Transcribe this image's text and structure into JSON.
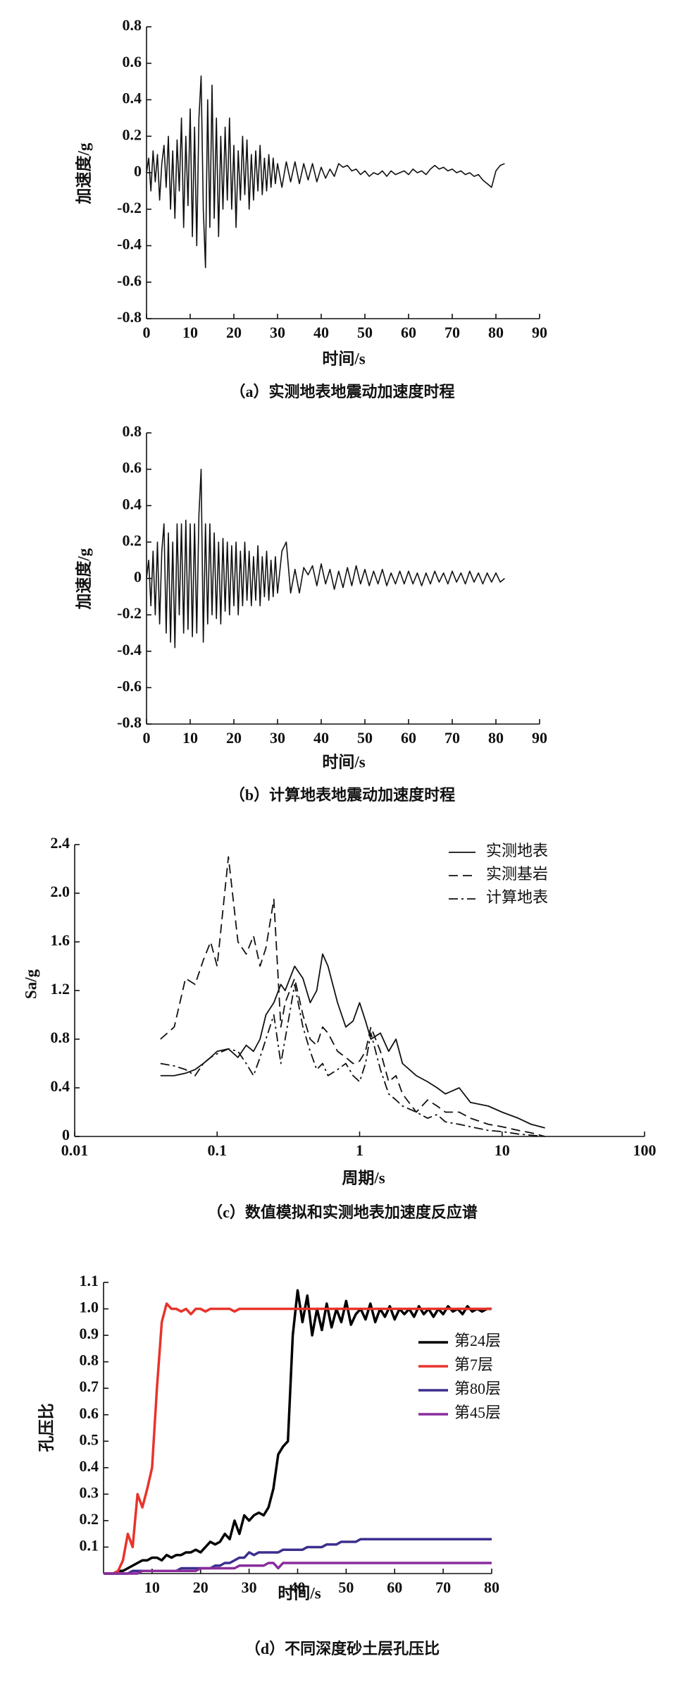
{
  "chart_data": [
    {
      "type": "line",
      "caption": "（a）实测地表地震动加速度时程",
      "xlabel": "时间/s",
      "ylabel": "加速度/g",
      "x": [
        0,
        0.5,
        1,
        1.5,
        2,
        2.5,
        3,
        3.5,
        4,
        4.5,
        5,
        5.5,
        6,
        6.5,
        7,
        7.5,
        8,
        8.5,
        9,
        9.5,
        10,
        10.5,
        11,
        11.5,
        12,
        12.5,
        13,
        13.5,
        14,
        14.5,
        15,
        15.5,
        16,
        16.5,
        17,
        17.5,
        18,
        18.5,
        19,
        19.5,
        20,
        20.5,
        21,
        21.5,
        22,
        22.5,
        23,
        23.5,
        24,
        24.5,
        25,
        25.5,
        26,
        26.5,
        27,
        27.5,
        28,
        28.5,
        29,
        29.5,
        30,
        31,
        32,
        33,
        34,
        35,
        36,
        37,
        38,
        39,
        40,
        41,
        42,
        43,
        44,
        45,
        46,
        47,
        48,
        49,
        50,
        51,
        52,
        53,
        54,
        55,
        56,
        57,
        58,
        59,
        60,
        61,
        62,
        63,
        64,
        65,
        66,
        67,
        68,
        69,
        70,
        71,
        72,
        73,
        74,
        75,
        76,
        77,
        78,
        79,
        80,
        81,
        82
      ],
      "series": [
        {
          "color": "#111111",
          "values": [
            0,
            0.08,
            -0.1,
            0.12,
            -0.05,
            0.1,
            -0.15,
            0.05,
            0.15,
            -0.08,
            0.2,
            -0.2,
            0.12,
            -0.25,
            0.18,
            -0.1,
            0.3,
            -0.3,
            0.2,
            -0.18,
            0.35,
            -0.35,
            0.25,
            -0.4,
            0.3,
            0.53,
            -0.2,
            -0.52,
            0.4,
            -0.3,
            0.48,
            -0.25,
            0.3,
            -0.35,
            0.2,
            -0.2,
            0.25,
            -0.15,
            0.3,
            -0.2,
            0.15,
            -0.3,
            0.12,
            -0.15,
            0.2,
            -0.12,
            0.18,
            -0.2,
            0.1,
            -0.15,
            0.12,
            -0.1,
            0.15,
            -0.12,
            0.08,
            -0.1,
            0.1,
            -0.08,
            0.08,
            -0.06,
            0.05,
            -0.08,
            0.06,
            -0.05,
            0.06,
            -0.06,
            0.05,
            -0.04,
            0.05,
            -0.05,
            0.03,
            -0.03,
            0.02,
            -0.02,
            0.05,
            0.03,
            0.04,
            0.01,
            0.02,
            -0.01,
            0.01,
            -0.02,
            0,
            -0.01,
            0.01,
            -0.02,
            0.01,
            -0.01,
            0,
            0.01,
            -0.01,
            0.02,
            0,
            0.01,
            -0.01,
            0.02,
            0.04,
            0.02,
            0.03,
            0.01,
            0.02,
            0,
            0.01,
            -0.01,
            0,
            -0.02,
            -0.01,
            -0.04,
            -0.06,
            -0.08,
            0.01,
            0.04,
            0.05
          ]
        }
      ],
      "xlim": [
        0,
        90
      ],
      "xticks": [
        0,
        10,
        20,
        30,
        40,
        50,
        60,
        70,
        80,
        90
      ],
      "ylim": [
        -0.8,
        0.8
      ],
      "yticks": [
        -0.8,
        -0.6,
        -0.4,
        -0.2,
        0,
        0.2,
        0.4,
        0.6,
        0.8
      ]
    },
    {
      "type": "line",
      "caption": "（b）计算地表地震动加速度时程",
      "xlabel": "时间/s",
      "ylabel": "加速度/g",
      "x": [
        0,
        0.5,
        1,
        1.5,
        2,
        2.5,
        3,
        3.5,
        4,
        4.5,
        5,
        5.5,
        6,
        6.5,
        7,
        7.5,
        8,
        8.5,
        9,
        9.5,
        10,
        10.5,
        11,
        11.5,
        12,
        12.5,
        13,
        13.5,
        14,
        14.5,
        15,
        15.5,
        16,
        16.5,
        17,
        17.5,
        18,
        18.5,
        19,
        19.5,
        20,
        20.5,
        21,
        21.5,
        22,
        22.5,
        23,
        23.5,
        24,
        24.5,
        25,
        25.5,
        26,
        26.5,
        27,
        27.5,
        28,
        28.5,
        29,
        29.5,
        30,
        31,
        32,
        33,
        34,
        35,
        36,
        37,
        38,
        39,
        40,
        41,
        42,
        43,
        44,
        45,
        46,
        47,
        48,
        49,
        50,
        51,
        52,
        53,
        54,
        55,
        56,
        57,
        58,
        59,
        60,
        61,
        62,
        63,
        64,
        65,
        66,
        67,
        68,
        69,
        70,
        71,
        72,
        73,
        74,
        75,
        76,
        77,
        78,
        79,
        80,
        81,
        82
      ],
      "series": [
        {
          "color": "#111111",
          "values": [
            0,
            0.1,
            -0.15,
            0.15,
            -0.2,
            0.2,
            -0.25,
            0.15,
            0.3,
            -0.3,
            0.25,
            -0.35,
            0.2,
            -0.38,
            0.3,
            -0.2,
            0.3,
            -0.3,
            0.32,
            -0.28,
            0.3,
            -0.32,
            0.3,
            -0.3,
            0.35,
            0.6,
            -0.35,
            0.3,
            -0.25,
            0.3,
            -0.2,
            0.25,
            -0.22,
            0.2,
            -0.25,
            0.22,
            -0.18,
            0.2,
            -0.2,
            0.18,
            -0.15,
            0.2,
            -0.2,
            0.15,
            -0.15,
            0.2,
            -0.12,
            0.15,
            -0.15,
            0.12,
            -0.12,
            0.18,
            -0.15,
            0.12,
            -0.1,
            0.15,
            -0.12,
            0.1,
            -0.1,
            0.12,
            -0.08,
            0.15,
            0.2,
            -0.08,
            0.05,
            -0.08,
            0.06,
            0.02,
            0.07,
            -0.04,
            0.08,
            -0.03,
            0.05,
            -0.06,
            0.04,
            -0.05,
            0.06,
            -0.04,
            0.07,
            -0.03,
            0.05,
            -0.04,
            0.04,
            -0.03,
            0.05,
            -0.04,
            0.03,
            -0.03,
            0.04,
            -0.03,
            0.04,
            -0.03,
            0.03,
            -0.04,
            0.03,
            -0.03,
            0.04,
            -0.02,
            0.03,
            -0.03,
            0.04,
            -0.02,
            0.03,
            -0.03,
            0.04,
            -0.02,
            0.03,
            -0.03,
            0.03,
            -0.02,
            0.03,
            -0.02,
            0
          ]
        }
      ],
      "xlim": [
        0,
        90
      ],
      "xticks": [
        0,
        10,
        20,
        30,
        40,
        50,
        60,
        70,
        80,
        90
      ],
      "ylim": [
        -0.8,
        0.8
      ],
      "yticks": [
        -0.8,
        -0.6,
        -0.4,
        -0.2,
        0,
        0.2,
        0.4,
        0.6,
        0.8
      ]
    },
    {
      "type": "line",
      "caption": "（c）数值模拟和实测地表加速度反应谱",
      "xlabel": "周期/s",
      "ylabel": "Sa/g",
      "xscale": "log",
      "legend": "upper right",
      "x": [
        0.04,
        0.05,
        0.06,
        0.07,
        0.08,
        0.09,
        0.1,
        0.12,
        0.14,
        0.16,
        0.18,
        0.2,
        0.22,
        0.25,
        0.28,
        0.3,
        0.35,
        0.4,
        0.45,
        0.5,
        0.55,
        0.6,
        0.7,
        0.8,
        0.9,
        1,
        1.1,
        1.2,
        1.4,
        1.6,
        1.8,
        2,
        2.5,
        3,
        3.5,
        4,
        5,
        6,
        8,
        10,
        13,
        16,
        20
      ],
      "series": [
        {
          "name": "实测地表",
          "color": "#111111",
          "style": "solid",
          "values": [
            0.5,
            0.5,
            0.52,
            0.55,
            0.6,
            0.65,
            0.7,
            0.72,
            0.65,
            0.75,
            0.7,
            0.8,
            1.0,
            1.1,
            1.25,
            1.2,
            1.4,
            1.3,
            1.1,
            1.2,
            1.5,
            1.4,
            1.1,
            0.9,
            0.95,
            1.1,
            0.95,
            0.8,
            0.85,
            0.7,
            0.8,
            0.6,
            0.5,
            0.45,
            0.4,
            0.35,
            0.4,
            0.28,
            0.25,
            0.2,
            0.15,
            0.1,
            0.07
          ]
        },
        {
          "name": "实测基岩",
          "color": "#111111",
          "style": "dashed",
          "values": [
            0.8,
            0.9,
            1.3,
            1.25,
            1.45,
            1.6,
            1.4,
            2.3,
            1.6,
            1.5,
            1.65,
            1.4,
            1.55,
            1.95,
            0.9,
            1.1,
            1.3,
            1.0,
            0.8,
            0.75,
            0.9,
            0.85,
            0.7,
            0.65,
            0.6,
            0.62,
            0.7,
            0.9,
            0.7,
            0.45,
            0.5,
            0.35,
            0.2,
            0.3,
            0.25,
            0.2,
            0.2,
            0.15,
            0.1,
            0.08,
            0.05,
            0.03,
            0
          ]
        },
        {
          "name": "计算地表",
          "color": "#111111",
          "style": "dashdot",
          "values": [
            0.6,
            0.58,
            0.55,
            0.5,
            0.6,
            0.65,
            0.68,
            0.72,
            0.7,
            0.6,
            0.5,
            0.65,
            0.8,
            1.0,
            0.6,
            0.8,
            1.25,
            0.9,
            0.7,
            0.55,
            0.6,
            0.5,
            0.55,
            0.6,
            0.5,
            0.45,
            0.6,
            0.85,
            0.55,
            0.35,
            0.3,
            0.25,
            0.2,
            0.15,
            0.18,
            0.12,
            0.1,
            0.08,
            0.05,
            0.04,
            0.02,
            0.01,
            0
          ]
        }
      ],
      "xlim": [
        0.01,
        100
      ],
      "xticks": [
        0.01,
        0.1,
        1,
        10,
        100
      ],
      "ylim": [
        0,
        2.4
      ],
      "yticks": [
        0,
        0.4,
        0.8,
        1.2,
        1.6,
        {
          "value": 2,
          "label": "2.0"
        },
        2.4
      ]
    },
    {
      "type": "line",
      "caption": "（d）不同深度砂土层孔压比",
      "xlabel": "时间/s",
      "ylabel": "孔压比",
      "legend": "upper right",
      "x": [
        0,
        1,
        2,
        3,
        4,
        5,
        6,
        7,
        8,
        9,
        10,
        11,
        12,
        13,
        14,
        15,
        16,
        17,
        18,
        19,
        20,
        21,
        22,
        23,
        24,
        25,
        26,
        27,
        28,
        29,
        30,
        31,
        32,
        33,
        34,
        35,
        36,
        37,
        38,
        39,
        40,
        41,
        42,
        43,
        44,
        45,
        46,
        47,
        48,
        49,
        50,
        51,
        52,
        53,
        54,
        55,
        56,
        57,
        58,
        59,
        60,
        61,
        62,
        63,
        64,
        65,
        66,
        67,
        68,
        69,
        70,
        71,
        72,
        73,
        74,
        75,
        76,
        77,
        78,
        79,
        80
      ],
      "series": [
        {
          "name": "第24层",
          "color": "#000000",
          "values": [
            0,
            0,
            0,
            0.01,
            0.01,
            0.02,
            0.03,
            0.04,
            0.05,
            0.05,
            0.06,
            0.06,
            0.05,
            0.07,
            0.06,
            0.07,
            0.07,
            0.08,
            0.08,
            0.09,
            0.08,
            0.1,
            0.12,
            0.11,
            0.12,
            0.15,
            0.13,
            0.2,
            0.15,
            0.22,
            0.2,
            0.22,
            0.23,
            0.22,
            0.25,
            0.32,
            0.45,
            0.48,
            0.5,
            0.9,
            1.07,
            0.95,
            1.05,
            0.9,
            1,
            0.92,
            1.02,
            0.93,
            1,
            0.95,
            1.03,
            0.94,
            0.98,
            1,
            0.96,
            1.02,
            0.95,
            1,
            0.97,
            1.01,
            0.96,
            1,
            0.98,
            1,
            0.97,
            1.01,
            0.98,
            1,
            0.97,
            1,
            0.98,
            1.01,
            0.99,
            1,
            0.98,
            1.01,
            0.99,
            1,
            0.99,
            1,
            1
          ]
        },
        {
          "name": "第7层",
          "color": "#e8332b",
          "values": [
            0,
            0,
            0,
            0.01,
            0.05,
            0.15,
            0.1,
            0.3,
            0.25,
            0.32,
            0.4,
            0.7,
            0.95,
            1.02,
            1,
            1,
            0.99,
            1,
            0.98,
            1,
            1,
            0.99,
            1,
            1,
            1,
            1,
            1,
            0.99,
            1,
            1,
            1,
            1,
            1,
            1,
            1,
            1,
            1,
            1,
            1,
            1,
            1,
            1,
            1,
            1,
            1,
            1,
            1,
            1,
            1,
            1,
            1,
            1,
            1,
            1,
            1,
            1,
            1,
            1,
            1,
            1,
            1,
            1,
            1,
            1,
            1,
            1,
            1,
            1,
            1,
            1,
            1,
            1,
            1,
            1,
            1,
            1,
            1,
            1,
            1,
            1,
            1
          ]
        },
        {
          "name": "第80层",
          "color": "#3b2f8e",
          "values": [
            0,
            0,
            0,
            0,
            0,
            0,
            0.01,
            0.01,
            0.01,
            0.01,
            0.01,
            0.01,
            0.01,
            0.01,
            0.01,
            0.01,
            0.02,
            0.02,
            0.02,
            0.02,
            0.02,
            0.02,
            0.02,
            0.03,
            0.03,
            0.04,
            0.04,
            0.05,
            0.06,
            0.06,
            0.08,
            0.07,
            0.08,
            0.08,
            0.08,
            0.08,
            0.08,
            0.09,
            0.09,
            0.09,
            0.09,
            0.09,
            0.1,
            0.1,
            0.1,
            0.1,
            0.11,
            0.11,
            0.11,
            0.12,
            0.12,
            0.12,
            0.12,
            0.13,
            0.13,
            0.13,
            0.13,
            0.13,
            0.13,
            0.13,
            0.13,
            0.13,
            0.13,
            0.13,
            0.13,
            0.13,
            0.13,
            0.13,
            0.13,
            0.13,
            0.13,
            0.13,
            0.13,
            0.13,
            0.13,
            0.13,
            0.13,
            0.13,
            0.13,
            0.13,
            0.13
          ]
        },
        {
          "name": "第45层",
          "color": "#8a2c9c",
          "values": [
            0,
            0,
            0,
            0,
            0,
            0,
            0,
            0,
            0.01,
            0.01,
            0.01,
            0.01,
            0.01,
            0.01,
            0.01,
            0.01,
            0.01,
            0.01,
            0.01,
            0.01,
            0.02,
            0.02,
            0.02,
            0.02,
            0.02,
            0.02,
            0.02,
            0.02,
            0.03,
            0.03,
            0.03,
            0.03,
            0.03,
            0.03,
            0.04,
            0.04,
            0.02,
            0.04,
            0.04,
            0.04,
            0.04,
            0.04,
            0.04,
            0.04,
            0.04,
            0.04,
            0.04,
            0.04,
            0.04,
            0.04,
            0.04,
            0.04,
            0.04,
            0.04,
            0.04,
            0.04,
            0.04,
            0.04,
            0.04,
            0.04,
            0.04,
            0.04,
            0.04,
            0.04,
            0.04,
            0.04,
            0.04,
            0.04,
            0.04,
            0.04,
            0.04,
            0.04,
            0.04,
            0.04,
            0.04,
            0.04,
            0.04,
            0.04,
            0.04,
            0.04,
            0.04
          ]
        }
      ],
      "xlim": [
        0,
        80
      ],
      "xticks": [
        10,
        20,
        30,
        40,
        50,
        60,
        70,
        80
      ],
      "ylim": [
        0,
        1.1
      ],
      "yticks": [
        0.1,
        0.2,
        0.3,
        0.4,
        0.5,
        0.6,
        0.7,
        0.8,
        0.9,
        {
          "value": 1,
          "label": "1.0"
        },
        1.1
      ]
    }
  ]
}
